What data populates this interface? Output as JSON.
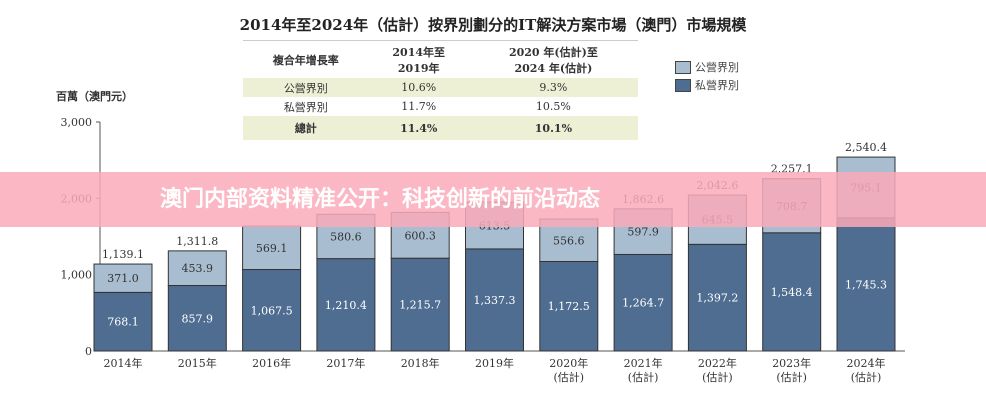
{
  "banner": "澳门内部资料精准公开：科技创新的前沿动态",
  "chart_data": {
    "type": "bar",
    "stacked": true,
    "title": "2014年至2024年（估計）按界別劃分的IT解決方案市場（澳門）市場規模",
    "ylabel": "百萬（澳門元）",
    "ylim": [
      0,
      3000
    ],
    "yticks": [
      "0",
      "1,000",
      "2,000",
      "3,000"
    ],
    "categories": [
      "2014年",
      "2015年",
      "2016年",
      "2017年",
      "2018年",
      "2019年",
      "2020年\n(估計)",
      "2021年\n(估計)",
      "2022年\n(估計)",
      "2023年\n(估計)",
      "2024年\n(估計)"
    ],
    "series": [
      {
        "name": "私營界別",
        "color": "#4f6d91",
        "values": [
          768.1,
          857.9,
          1067.5,
          1210.4,
          1215.7,
          1337.3,
          1172.5,
          1264.7,
          1397.2,
          1548.4,
          1745.3
        ]
      },
      {
        "name": "公營界別",
        "color": "#a9bdd1",
        "values": [
          371.0,
          453.9,
          569.1,
          580.6,
          600.3,
          613.5,
          556.6,
          597.9,
          645.5,
          708.7,
          795.1
        ]
      }
    ],
    "totals": [
      "1,139.1",
      "1,311.8",
      null,
      null,
      null,
      null,
      null,
      "1,862.6",
      "2,042.6",
      "2,257.1",
      "2,540.4"
    ],
    "legend": [
      "公營界別",
      "私營界別"
    ],
    "cagr_table": {
      "header": [
        "複合年增長率",
        "2014年至\n2019年",
        "2020 年(估計)至\n2024 年(估計)"
      ],
      "rows": [
        [
          "公營界別",
          "10.6%",
          "9.3%"
        ],
        [
          "私營界別",
          "11.7%",
          "10.5%"
        ],
        [
          "總計",
          "11.4%",
          "10.1%"
        ]
      ]
    }
  }
}
